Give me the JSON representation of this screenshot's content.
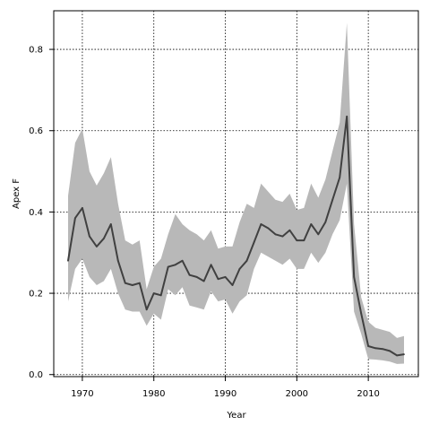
{
  "chart_data": {
    "type": "line",
    "title": "",
    "xlabel": "Year",
    "ylabel": "Apex F",
    "xlim": [
      1966,
      2017
    ],
    "ylim": [
      -0.005,
      0.895
    ],
    "xticks": [
      1970,
      1980,
      1990,
      2000,
      2010
    ],
    "yticks": [
      0.0,
      0.2,
      0.4,
      0.6,
      0.8
    ],
    "xtick_labels": [
      "1970",
      "1980",
      "1990",
      "2000",
      "2010"
    ],
    "ytick_labels": [
      "0.0",
      "0.2",
      "0.4",
      "0.6",
      "0.8"
    ],
    "grid": true,
    "x": [
      1968,
      1969,
      1970,
      1971,
      1972,
      1973,
      1974,
      1975,
      1976,
      1977,
      1978,
      1979,
      1980,
      1981,
      1982,
      1983,
      1984,
      1985,
      1986,
      1987,
      1988,
      1989,
      1990,
      1991,
      1992,
      1993,
      1994,
      1995,
      1996,
      1997,
      1998,
      1999,
      2000,
      2001,
      2002,
      2003,
      2004,
      2005,
      2006,
      2007,
      2008,
      2009,
      2010,
      2011,
      2012,
      2013,
      2014,
      2015
    ],
    "series": [
      {
        "values": [
          0.28,
          0.385,
          0.41,
          0.34,
          0.315,
          0.335,
          0.37,
          0.28,
          0.225,
          0.22,
          0.225,
          0.16,
          0.2,
          0.195,
          0.265,
          0.27,
          0.28,
          0.245,
          0.24,
          0.23,
          0.27,
          0.235,
          0.24,
          0.22,
          0.26,
          0.28,
          0.325,
          0.37,
          0.36,
          0.345,
          0.34,
          0.355,
          0.33,
          0.33,
          0.37,
          0.345,
          0.375,
          0.43,
          0.485,
          0.635,
          0.24,
          0.15,
          0.07,
          0.065,
          0.063,
          0.058,
          0.047,
          0.05
        ],
        "lower": [
          0.18,
          0.26,
          0.285,
          0.24,
          0.22,
          0.23,
          0.26,
          0.2,
          0.16,
          0.155,
          0.155,
          0.12,
          0.15,
          0.135,
          0.21,
          0.195,
          0.215,
          0.17,
          0.165,
          0.16,
          0.205,
          0.18,
          0.185,
          0.15,
          0.18,
          0.195,
          0.26,
          0.3,
          0.29,
          0.28,
          0.27,
          0.285,
          0.26,
          0.26,
          0.3,
          0.275,
          0.3,
          0.345,
          0.38,
          0.47,
          0.155,
          0.1,
          0.038,
          0.037,
          0.035,
          0.032,
          0.026,
          0.027
        ],
        "upper": [
          0.44,
          0.57,
          0.605,
          0.5,
          0.465,
          0.495,
          0.535,
          0.42,
          0.33,
          0.32,
          0.33,
          0.21,
          0.265,
          0.285,
          0.345,
          0.395,
          0.37,
          0.355,
          0.345,
          0.33,
          0.355,
          0.31,
          0.315,
          0.315,
          0.375,
          0.42,
          0.41,
          0.47,
          0.45,
          0.43,
          0.425,
          0.445,
          0.405,
          0.41,
          0.47,
          0.435,
          0.48,
          0.55,
          0.62,
          0.865,
          0.37,
          0.19,
          0.13,
          0.115,
          0.11,
          0.105,
          0.09,
          0.095
        ]
      }
    ],
    "colors": {
      "line": "#404040",
      "band": "#b8b8b8",
      "grid": "#000000",
      "axis": "#000000"
    }
  }
}
